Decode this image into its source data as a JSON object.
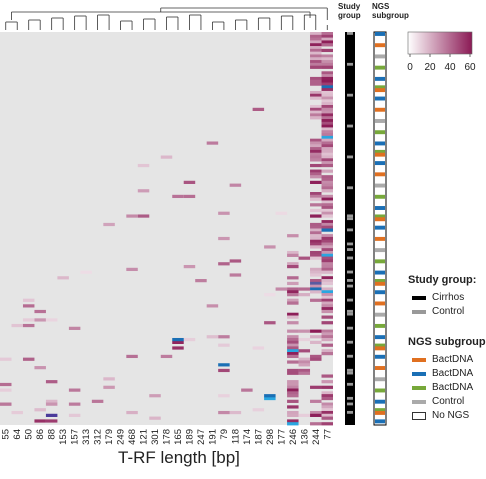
{
  "chart_data": {
    "type": "heatmap",
    "xlabel": "T-RF length [bp]",
    "x_tick_labels": [
      "55",
      "64",
      "50",
      "86",
      "88",
      "153",
      "157",
      "313",
      "312",
      "179",
      "249",
      "468",
      "121",
      "301",
      "178",
      "165",
      "189",
      "247",
      "191",
      "79",
      "118",
      "174",
      "187",
      "298",
      "177",
      "246",
      "136",
      "244",
      "77"
    ],
    "color_scale": {
      "ticks": [
        "0",
        "20",
        "40",
        "60"
      ],
      "low_color": "#ffffff",
      "high_color": "#8b1a55",
      "empty_color": "#e5e5e5"
    },
    "annotation_columns": [
      {
        "header_line1": "Study",
        "header_line2": "group"
      },
      {
        "header_line1": "NGS",
        "header_line2": "subgroup"
      }
    ],
    "legends": {
      "study_group": {
        "title": "Study group:",
        "items": [
          {
            "label": "Cirrhos",
            "color": "#000000"
          },
          {
            "label": "Control",
            "color": "#999999"
          }
        ]
      },
      "ngs_subgroup": {
        "title": "NGS subgroup",
        "items": [
          {
            "label": "BactDNA",
            "color": "#e07020"
          },
          {
            "label": "BactDNA",
            "color": "#1a6fb5"
          },
          {
            "label": "BactDNA",
            "color": "#77a83a"
          },
          {
            "label": "Control",
            "color": "#aaaaaa"
          },
          {
            "label": "No NGS",
            "color": "#ffffff"
          }
        ]
      }
    }
  }
}
